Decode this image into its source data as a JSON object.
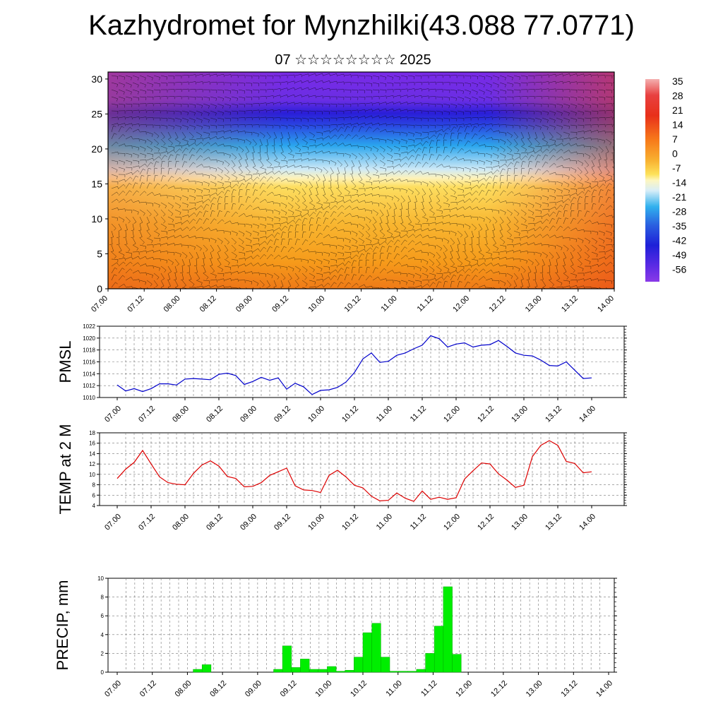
{
  "title": "Kazhydromet for Mynzhilki(43.088 77.0771)",
  "subtitle": "07 ☆☆☆☆☆☆☆☆ 2025",
  "chart_data": [
    {
      "type": "heatmap",
      "title": "",
      "x_ticks": [
        "07.00",
        "07.12",
        "08.00",
        "08.12",
        "09.00",
        "09.12",
        "10.00",
        "10.12",
        "11.00",
        "11.12",
        "12.00",
        "12.12",
        "13.00",
        "13.12",
        "14.00"
      ],
      "y_ticks": [
        0,
        5,
        10,
        15,
        20,
        25,
        30
      ],
      "ylim": [
        0,
        31
      ],
      "colorbar_labels": [
        "35",
        "28",
        "21",
        "14",
        "7",
        "0",
        "-7",
        "-14",
        "-21",
        "-28",
        "-35",
        "-42",
        "-49",
        "-56"
      ],
      "colors": {
        "cold": "#7a28e6",
        "deep": "#2020d8",
        "cool": "#30b0ee",
        "light": "#d8eef8",
        "warm": "#fde25a",
        "orange": "#f7a21a",
        "hot": "#e8501a"
      }
    },
    {
      "type": "line",
      "ylabel": "PMSL",
      "x_ticks": [
        "07.00",
        "07.12",
        "08.00",
        "08.12",
        "09.00",
        "09.12",
        "10.00",
        "10.12",
        "11.00",
        "11.12",
        "12.00",
        "12.12",
        "13.00",
        "13.12",
        "14.00"
      ],
      "y_ticks": [
        1010,
        1012,
        1014,
        1016,
        1018,
        1020,
        1022
      ],
      "ylim": [
        1010,
        1022
      ],
      "color": "#0000cc",
      "values": [
        1012.1,
        1011.1,
        1011.5,
        1011.0,
        1011.5,
        1012.3,
        1012.3,
        1012.1,
        1013.1,
        1013.2,
        1013.1,
        1013.0,
        1013.9,
        1014.1,
        1013.7,
        1012.2,
        1012.7,
        1013.4,
        1012.9,
        1013.3,
        1011.4,
        1012.4,
        1011.8,
        1010.5,
        1011.2,
        1011.3,
        1011.7,
        1012.6,
        1014.2,
        1016.5,
        1017.5,
        1015.9,
        1016.1,
        1017.1,
        1017.5,
        1018.2,
        1018.8,
        1020.4,
        1019.9,
        1018.5,
        1019.0,
        1019.2,
        1018.5,
        1018.8,
        1018.9,
        1019.6,
        1018.6,
        1017.5,
        1017.1,
        1017.0,
        1016.3,
        1015.4,
        1015.3,
        1016.0,
        1014.6,
        1013.2,
        1013.3
      ]
    },
    {
      "type": "line",
      "ylabel": "TEMP at 2 M",
      "x_ticks": [
        "07.00",
        "07.12",
        "08.00",
        "08.12",
        "09.00",
        "09.12",
        "10.00",
        "10.12",
        "11.00",
        "11.12",
        "12.00",
        "12.12",
        "13.00",
        "13.12",
        "14.00"
      ],
      "y_ticks": [
        4,
        6,
        8,
        10,
        12,
        14,
        16,
        18
      ],
      "ylim": [
        4,
        18
      ],
      "color": "#dd0000",
      "values": [
        9.2,
        11.0,
        12.3,
        14.6,
        12.0,
        9.5,
        8.4,
        8.1,
        8.0,
        10.2,
        11.8,
        12.6,
        11.6,
        9.6,
        9.2,
        7.6,
        7.7,
        8.4,
        9.8,
        10.5,
        11.2,
        7.8,
        7.0,
        6.9,
        6.5,
        9.8,
        10.8,
        9.5,
        7.9,
        7.4,
        5.8,
        4.9,
        5.0,
        6.4,
        5.4,
        4.8,
        6.8,
        5.2,
        5.6,
        5.2,
        5.5,
        9.1,
        10.7,
        12.2,
        12.0,
        10.1,
        8.9,
        7.5,
        7.9,
        13.4,
        15.6,
        16.5,
        15.6,
        12.5,
        12.1,
        10.3,
        10.5
      ]
    },
    {
      "type": "bar",
      "ylabel": "PRECIP, mm",
      "x_ticks": [
        "07.00",
        "07.12",
        "08.00",
        "08.12",
        "09.00",
        "09.12",
        "10.00",
        "10.12",
        "11.00",
        "11.12",
        "12.00",
        "12.12",
        "13.00",
        "13.12",
        "14.00"
      ],
      "y_ticks": [
        0,
        2,
        4,
        6,
        8,
        10
      ],
      "ylim": [
        0,
        10
      ],
      "color": "#00ee00",
      "values": [
        0,
        0,
        0,
        0,
        0,
        0,
        0,
        0,
        0,
        0.3,
        0.8,
        0,
        0,
        0,
        0,
        0,
        0,
        0,
        0.3,
        2.8,
        0.5,
        1.4,
        0.3,
        0.3,
        0.6,
        0.1,
        0.2,
        1.6,
        4.2,
        5.2,
        1.6,
        0.1,
        0.1,
        0.1,
        0.3,
        2.0,
        4.9,
        9.1,
        1.9,
        0,
        0,
        0,
        0,
        0,
        0,
        0,
        0,
        0,
        0,
        0,
        0,
        0,
        0,
        0,
        0,
        0
      ]
    }
  ]
}
